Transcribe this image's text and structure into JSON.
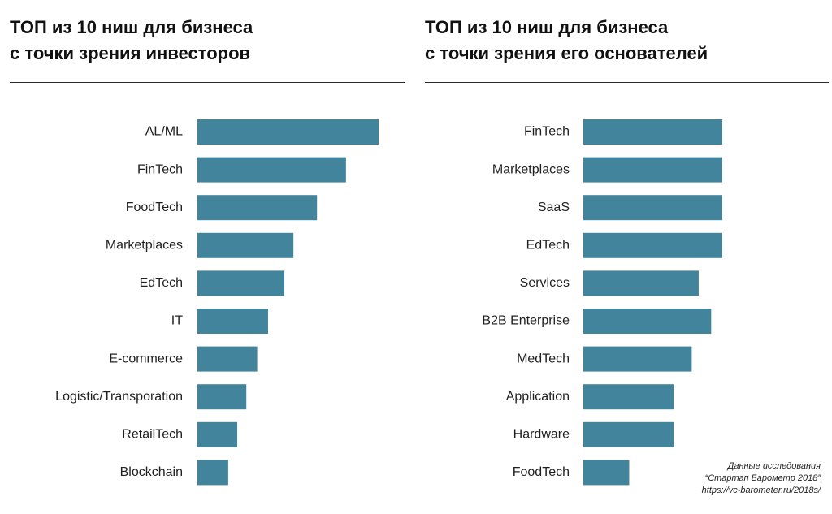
{
  "chart_data": [
    {
      "type": "bar",
      "orientation": "horizontal",
      "title": [
        "ТОП из 10 ниш для бизнеса",
        "с точки зрения инвесторов"
      ],
      "categories": [
        "AL/ML",
        "FinTech",
        "FoodTech",
        "Marketplaces",
        "EdTech",
        "IT",
        "E-commerce",
        "Logistic/Transporation",
        "RetailTech",
        "Blockchain"
      ],
      "values": [
        100,
        82,
        66,
        53,
        48,
        39,
        33,
        27,
        22,
        17
      ],
      "xlim": [
        0,
        100
      ],
      "grid": false,
      "legend": "none",
      "bar_color": "#42849c"
    },
    {
      "type": "bar",
      "orientation": "horizontal",
      "title": [
        "ТОП из 10 ниш для бизнеса",
        "с точки зрения его основателей"
      ],
      "categories": [
        "FinTech",
        "Marketplaces",
        "SaaS",
        "EdTech",
        "Services",
        "B2B Enterprise",
        "MedTech",
        "Application",
        "Hardware",
        "FoodTech"
      ],
      "values": [
        100,
        100,
        100,
        100,
        83,
        92,
        78,
        65,
        65,
        33
      ],
      "xlim": [
        0,
        100
      ],
      "grid": false,
      "legend": "none",
      "bar_color": "#42849c"
    }
  ],
  "source_note": {
    "line1": "Данные исследования",
    "line2": "“Стартап Барометр 2018”",
    "line3": "https://vc-barometer.ru/2018s/"
  }
}
